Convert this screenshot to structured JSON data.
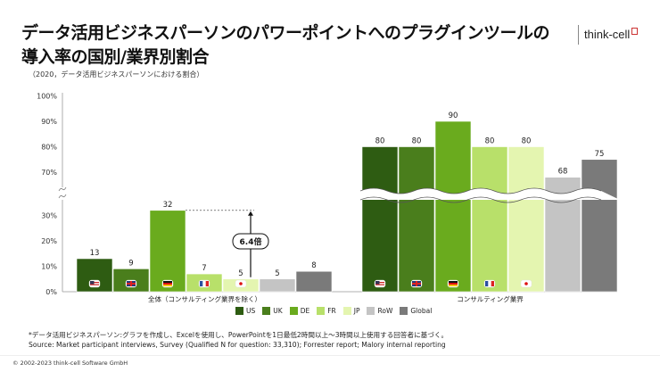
{
  "title": "データ活用ビジネスパーソンのパワーポイントへのプラグインツールの導入率の国別/業界別割合",
  "logo_text": "think-cell",
  "subtitle": "（2020，データ活用ビジネスパーソンにおける割合）",
  "annotation": "6.4倍",
  "footnote_line1": "*データ活用ビジネスパーソン:グラフを作成し、Excelを使用し、PowerPointを1日最低2時間以上～3時間以上使用する回答者に基づく。",
  "footnote_line2": "Source: Market participant interviews, Survey (Qualified N for question: 33,310); Forrester report; Malory internal reporting",
  "copyright": "© 2002-2023  think-cell Software  GmbH",
  "colors": {
    "US": "#2e5c12",
    "UK": "#4a7e1c",
    "DE": "#6aab1e",
    "FR": "#b8e06a",
    "JP": "#e4f5b0",
    "RoW": "#c4c4c4",
    "Global": "#7a7a7a"
  },
  "chart_data": {
    "type": "bar",
    "categories": [
      "全体（コンサルティング業界を除く）",
      "コンサルティング業界"
    ],
    "series": [
      {
        "name": "US",
        "values": [
          13,
          80
        ]
      },
      {
        "name": "UK",
        "values": [
          9,
          80
        ]
      },
      {
        "name": "DE",
        "values": [
          32,
          90
        ]
      },
      {
        "name": "FR",
        "values": [
          7,
          80
        ]
      },
      {
        "name": "JP",
        "values": [
          5,
          80
        ]
      },
      {
        "name": "RoW",
        "values": [
          5,
          68
        ]
      },
      {
        "name": "Global",
        "values": [
          8,
          75
        ]
      }
    ],
    "y_ticks_lower": [
      "0%",
      "10%",
      "20%",
      "30%"
    ],
    "y_ticks_upper": [
      "70%",
      "80%",
      "90%",
      "100%"
    ],
    "axis_break": true,
    "flags_on": [
      "US",
      "UK",
      "DE",
      "FR",
      "JP"
    ],
    "legend_position": "bottom"
  }
}
